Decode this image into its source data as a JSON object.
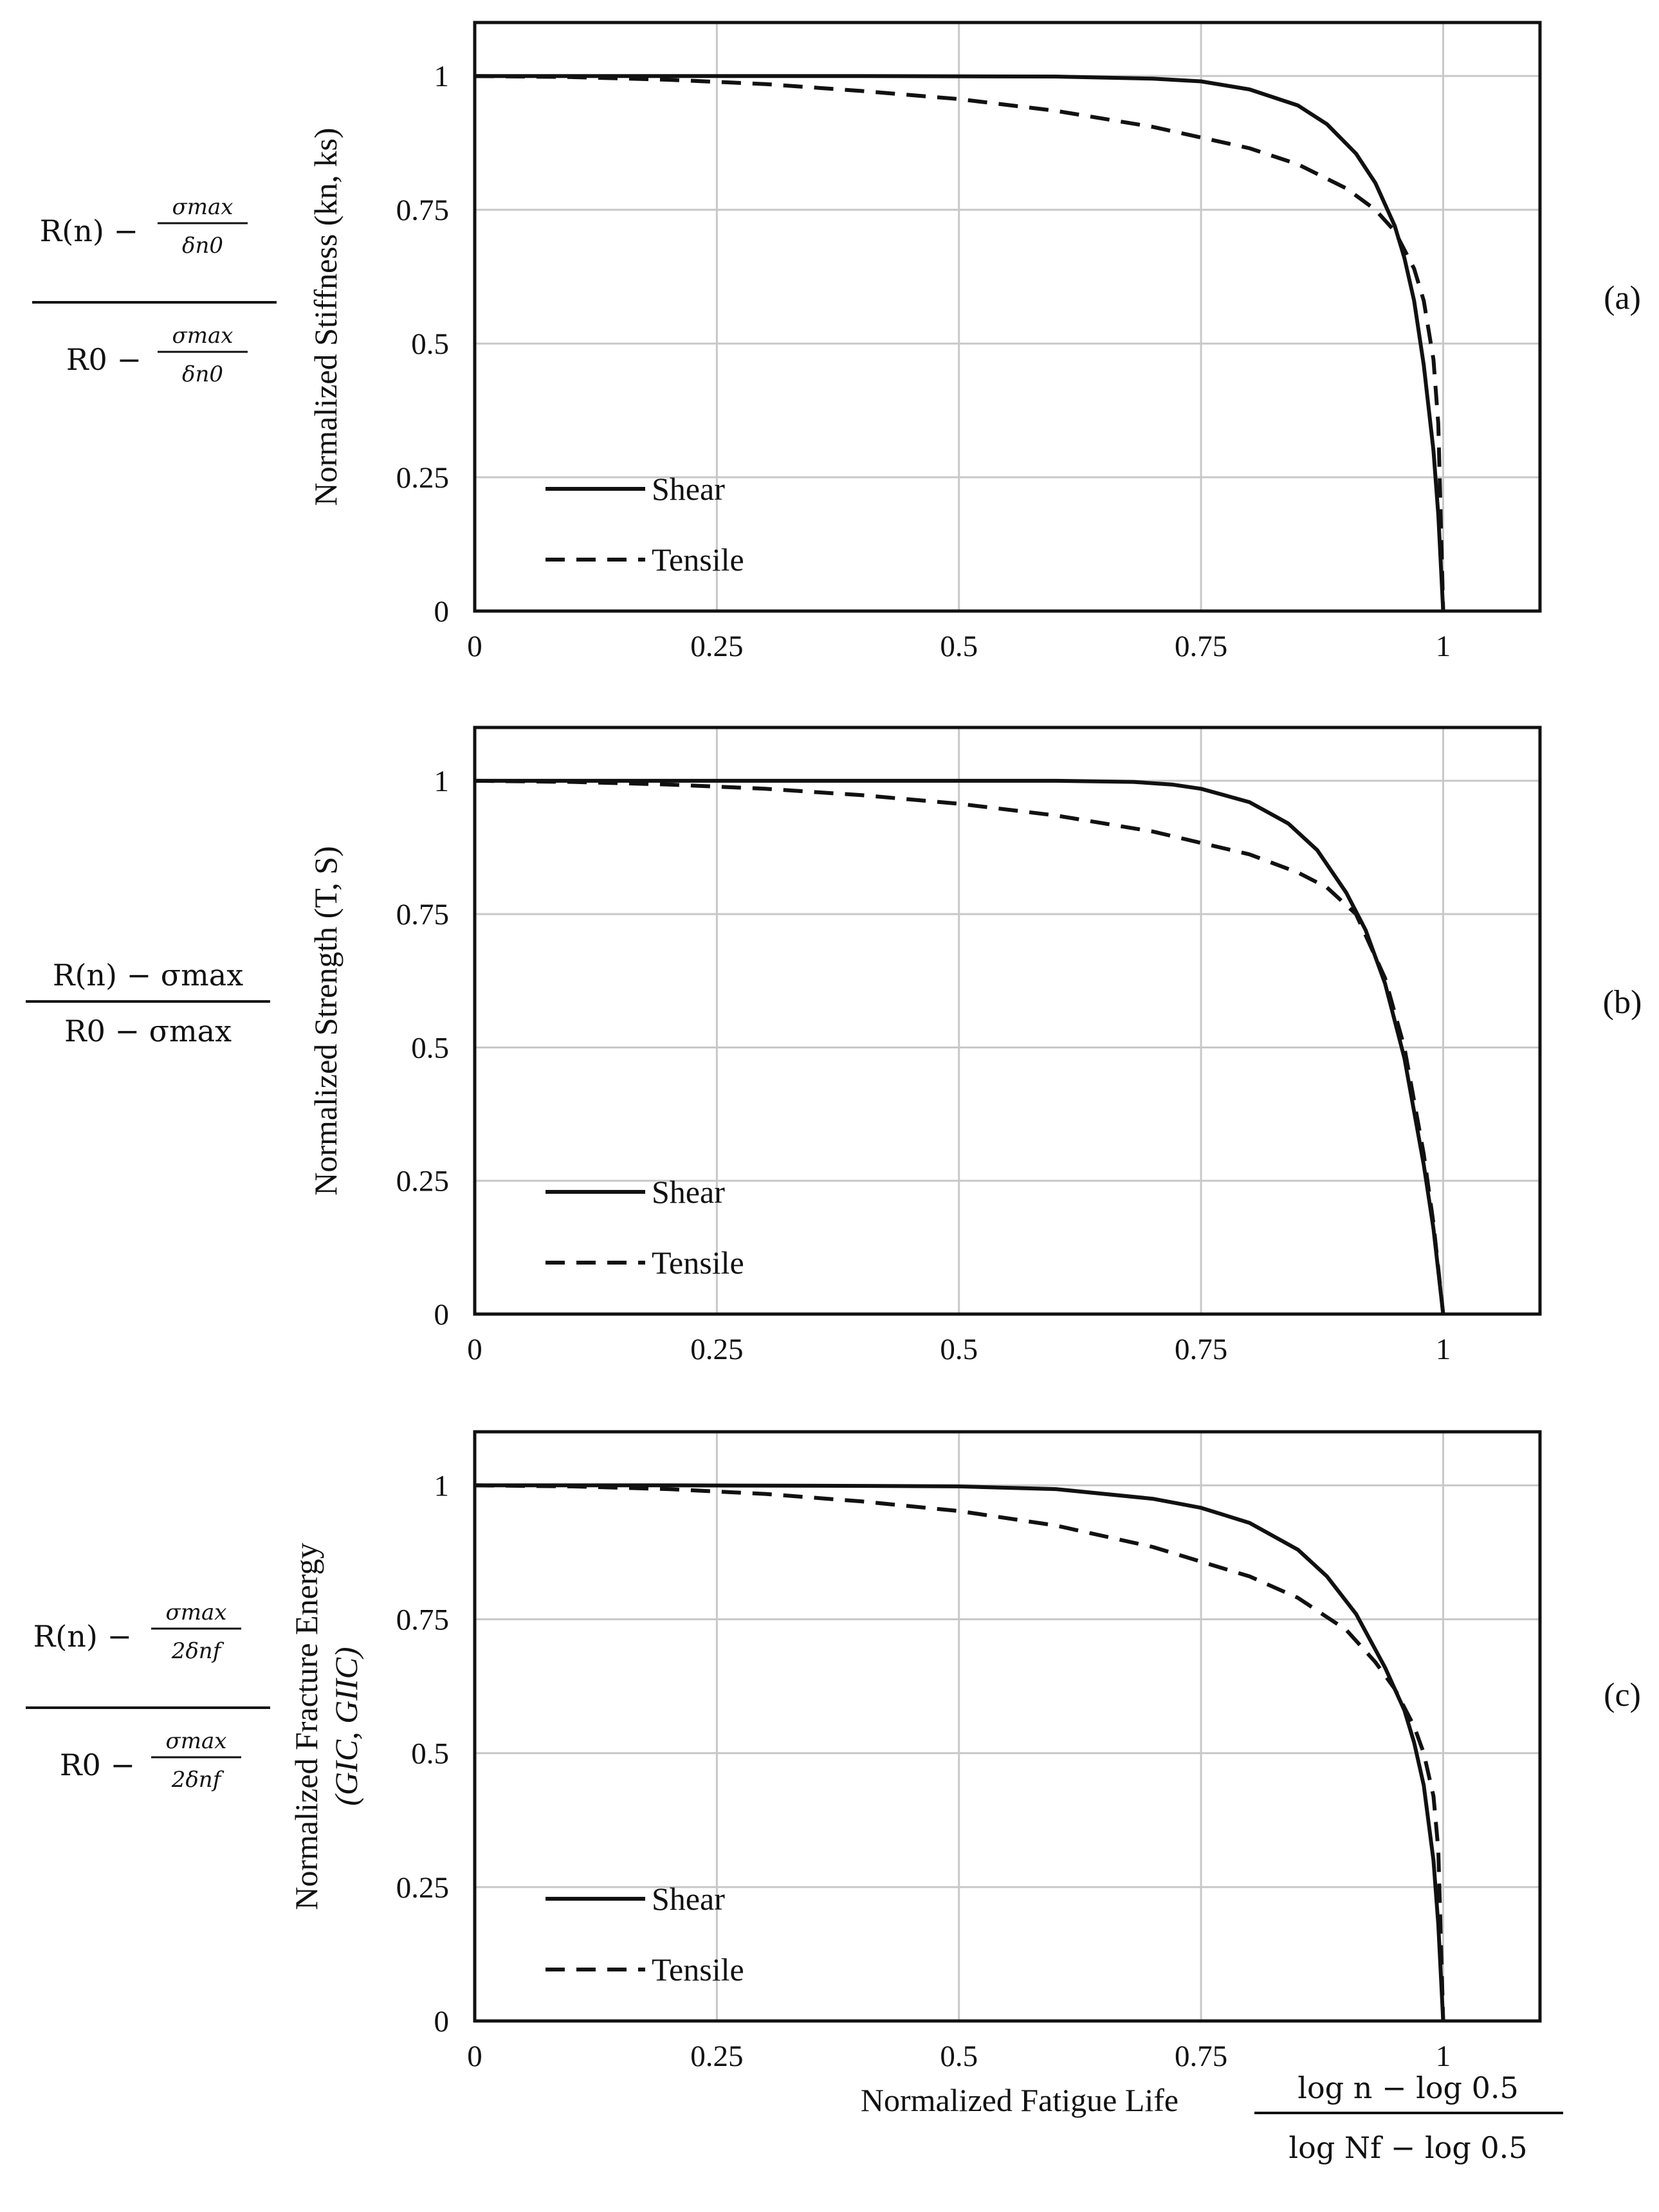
{
  "chart_data": [
    {
      "panel_id": "a",
      "panel_label": "(a)",
      "type": "line",
      "ylabel": "Normalized Stiffness (kn, ks)",
      "formula": {
        "num_main": "R(n) − ",
        "num_frac_top": "σmax",
        "num_frac_bot": "δn0",
        "den_main": "R0 − ",
        "den_frac_top": "σmax",
        "den_frac_bot": "δn0"
      },
      "xlim": [
        0,
        1.1
      ],
      "ylim": [
        0,
        1.1
      ],
      "xticks": [
        "0",
        "0.25",
        "0.5",
        "0.75",
        "1"
      ],
      "yticks": [
        "0",
        "0.25",
        "0.5",
        "0.75",
        "1"
      ],
      "legend": [
        "Shear",
        "Tensile"
      ],
      "series": [
        {
          "name": "Shear",
          "style": "solid",
          "x": [
            0,
            0.2,
            0.4,
            0.6,
            0.7,
            0.75,
            0.8,
            0.85,
            0.88,
            0.91,
            0.93,
            0.95,
            0.96,
            0.97,
            0.98,
            0.99,
            0.995,
            1.0
          ],
          "y": [
            1.0,
            1.0,
            1.0,
            0.999,
            0.995,
            0.99,
            0.975,
            0.945,
            0.91,
            0.855,
            0.8,
            0.72,
            0.66,
            0.58,
            0.46,
            0.3,
            0.18,
            0.0
          ]
        },
        {
          "name": "Tensile",
          "style": "dashed",
          "x": [
            0,
            0.1,
            0.2,
            0.3,
            0.4,
            0.5,
            0.6,
            0.7,
            0.8,
            0.85,
            0.9,
            0.93,
            0.95,
            0.97,
            0.98,
            0.99,
            0.995,
            1.0
          ],
          "y": [
            1.0,
            0.998,
            0.993,
            0.985,
            0.972,
            0.957,
            0.935,
            0.905,
            0.865,
            0.835,
            0.79,
            0.75,
            0.71,
            0.64,
            0.58,
            0.47,
            0.35,
            0.0
          ]
        }
      ]
    },
    {
      "panel_id": "b",
      "panel_label": "(b)",
      "type": "line",
      "ylabel": "Normalized Strength (T, S)",
      "formula": {
        "num_main": "R(n) − σmax",
        "den_main": "R0 − σmax"
      },
      "xlim": [
        0,
        1.1
      ],
      "ylim": [
        0,
        1.1
      ],
      "xticks": [
        "0",
        "0.25",
        "0.5",
        "0.75",
        "1"
      ],
      "yticks": [
        "0",
        "0.25",
        "0.5",
        "0.75",
        "1"
      ],
      "legend": [
        "Shear",
        "Tensile"
      ],
      "series": [
        {
          "name": "Shear",
          "style": "solid",
          "x": [
            0,
            0.2,
            0.4,
            0.6,
            0.68,
            0.72,
            0.75,
            0.8,
            0.84,
            0.87,
            0.9,
            0.92,
            0.94,
            0.96,
            0.98,
            0.99,
            1.0
          ],
          "y": [
            1.0,
            1.0,
            1.0,
            1.0,
            0.998,
            0.993,
            0.985,
            0.96,
            0.92,
            0.87,
            0.79,
            0.72,
            0.62,
            0.48,
            0.28,
            0.16,
            0.0
          ]
        },
        {
          "name": "Tensile",
          "style": "dashed",
          "x": [
            0,
            0.1,
            0.2,
            0.3,
            0.4,
            0.5,
            0.6,
            0.7,
            0.8,
            0.85,
            0.88,
            0.91,
            0.94,
            0.96,
            0.98,
            0.99,
            1.0
          ],
          "y": [
            1.0,
            0.998,
            0.993,
            0.985,
            0.973,
            0.957,
            0.935,
            0.905,
            0.862,
            0.828,
            0.8,
            0.75,
            0.63,
            0.5,
            0.3,
            0.17,
            0.0
          ]
        }
      ]
    },
    {
      "panel_id": "c",
      "panel_label": "(c)",
      "type": "line",
      "ylabel": "Normalized Fracture Energy",
      "ylabel2": "(GIC, GIIC)",
      "formula": {
        "num_main": "R(n) − ",
        "num_frac_top": "σmax",
        "num_frac_bot": "2δnf",
        "den_main": "R0 − ",
        "den_frac_top": "σmax",
        "den_frac_bot": "2δnf"
      },
      "xlabel": "Normalized Fatigue Life",
      "xformula": {
        "top": "log n − log 0.5",
        "bottom": "log Nf − log 0.5"
      },
      "xlim": [
        0,
        1.1
      ],
      "ylim": [
        0,
        1.1
      ],
      "xticks": [
        "0",
        "0.25",
        "0.5",
        "0.75",
        "1"
      ],
      "yticks": [
        "0",
        "0.25",
        "0.5",
        "0.75",
        "1"
      ],
      "legend": [
        "Shear",
        "Tensile"
      ],
      "series": [
        {
          "name": "Shear",
          "style": "solid",
          "x": [
            0,
            0.2,
            0.4,
            0.5,
            0.6,
            0.7,
            0.75,
            0.8,
            0.85,
            0.88,
            0.91,
            0.94,
            0.96,
            0.97,
            0.98,
            0.99,
            0.995,
            1.0
          ],
          "y": [
            1.0,
            1.0,
            0.999,
            0.998,
            0.993,
            0.975,
            0.958,
            0.93,
            0.88,
            0.83,
            0.76,
            0.66,
            0.58,
            0.52,
            0.44,
            0.3,
            0.18,
            0.0
          ]
        },
        {
          "name": "Tensile",
          "style": "dashed",
          "x": [
            0,
            0.1,
            0.2,
            0.3,
            0.4,
            0.5,
            0.6,
            0.7,
            0.8,
            0.85,
            0.9,
            0.93,
            0.95,
            0.97,
            0.98,
            0.99,
            0.995,
            1.0
          ],
          "y": [
            1.0,
            0.998,
            0.993,
            0.984,
            0.97,
            0.952,
            0.925,
            0.885,
            0.83,
            0.79,
            0.73,
            0.67,
            0.62,
            0.55,
            0.5,
            0.42,
            0.32,
            0.0
          ]
        }
      ]
    }
  ]
}
